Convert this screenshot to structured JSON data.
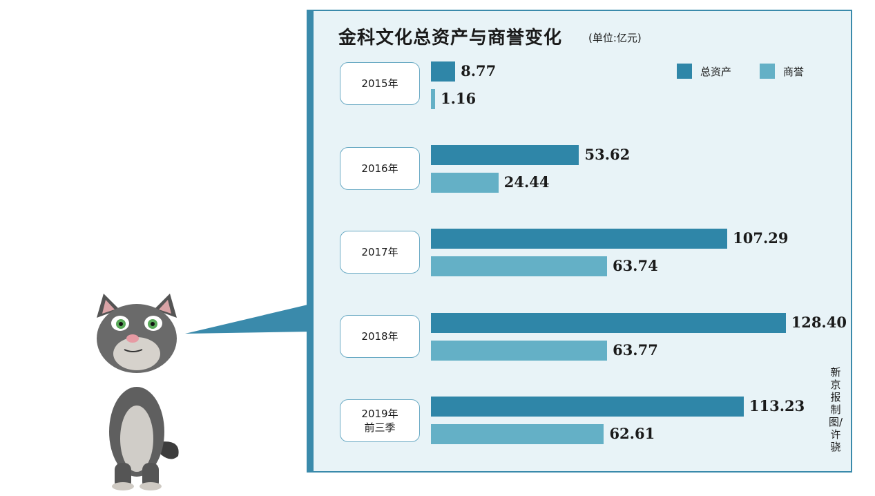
{
  "colors": {
    "total_assets": "#2f86a8",
    "goodwill": "#64b0c6",
    "panel_bg": "#e8f3f7",
    "panel_border": "#3a8aab"
  },
  "credit": "新京报制图/许骁",
  "chart_data": {
    "type": "bar",
    "orientation": "horizontal",
    "title": "金科文化总资产与商誉变化",
    "unit": "(单位:亿元)",
    "categories": [
      "2015年",
      "2016年",
      "2017年",
      "2018年",
      "2019年\n前三季"
    ],
    "series": [
      {
        "name": "总资产",
        "values": [
          8.77,
          53.62,
          107.29,
          128.4,
          113.23
        ],
        "labels": [
          "8.77",
          "53.62",
          "107.29",
          "128.40",
          "113.23"
        ]
      },
      {
        "name": "商誉",
        "values": [
          1.16,
          24.44,
          63.74,
          63.77,
          62.61
        ],
        "labels": [
          "1.16",
          "24.44",
          "63.74",
          "63.77",
          "62.61"
        ]
      }
    ],
    "legend": "top-right",
    "grid": false
  }
}
